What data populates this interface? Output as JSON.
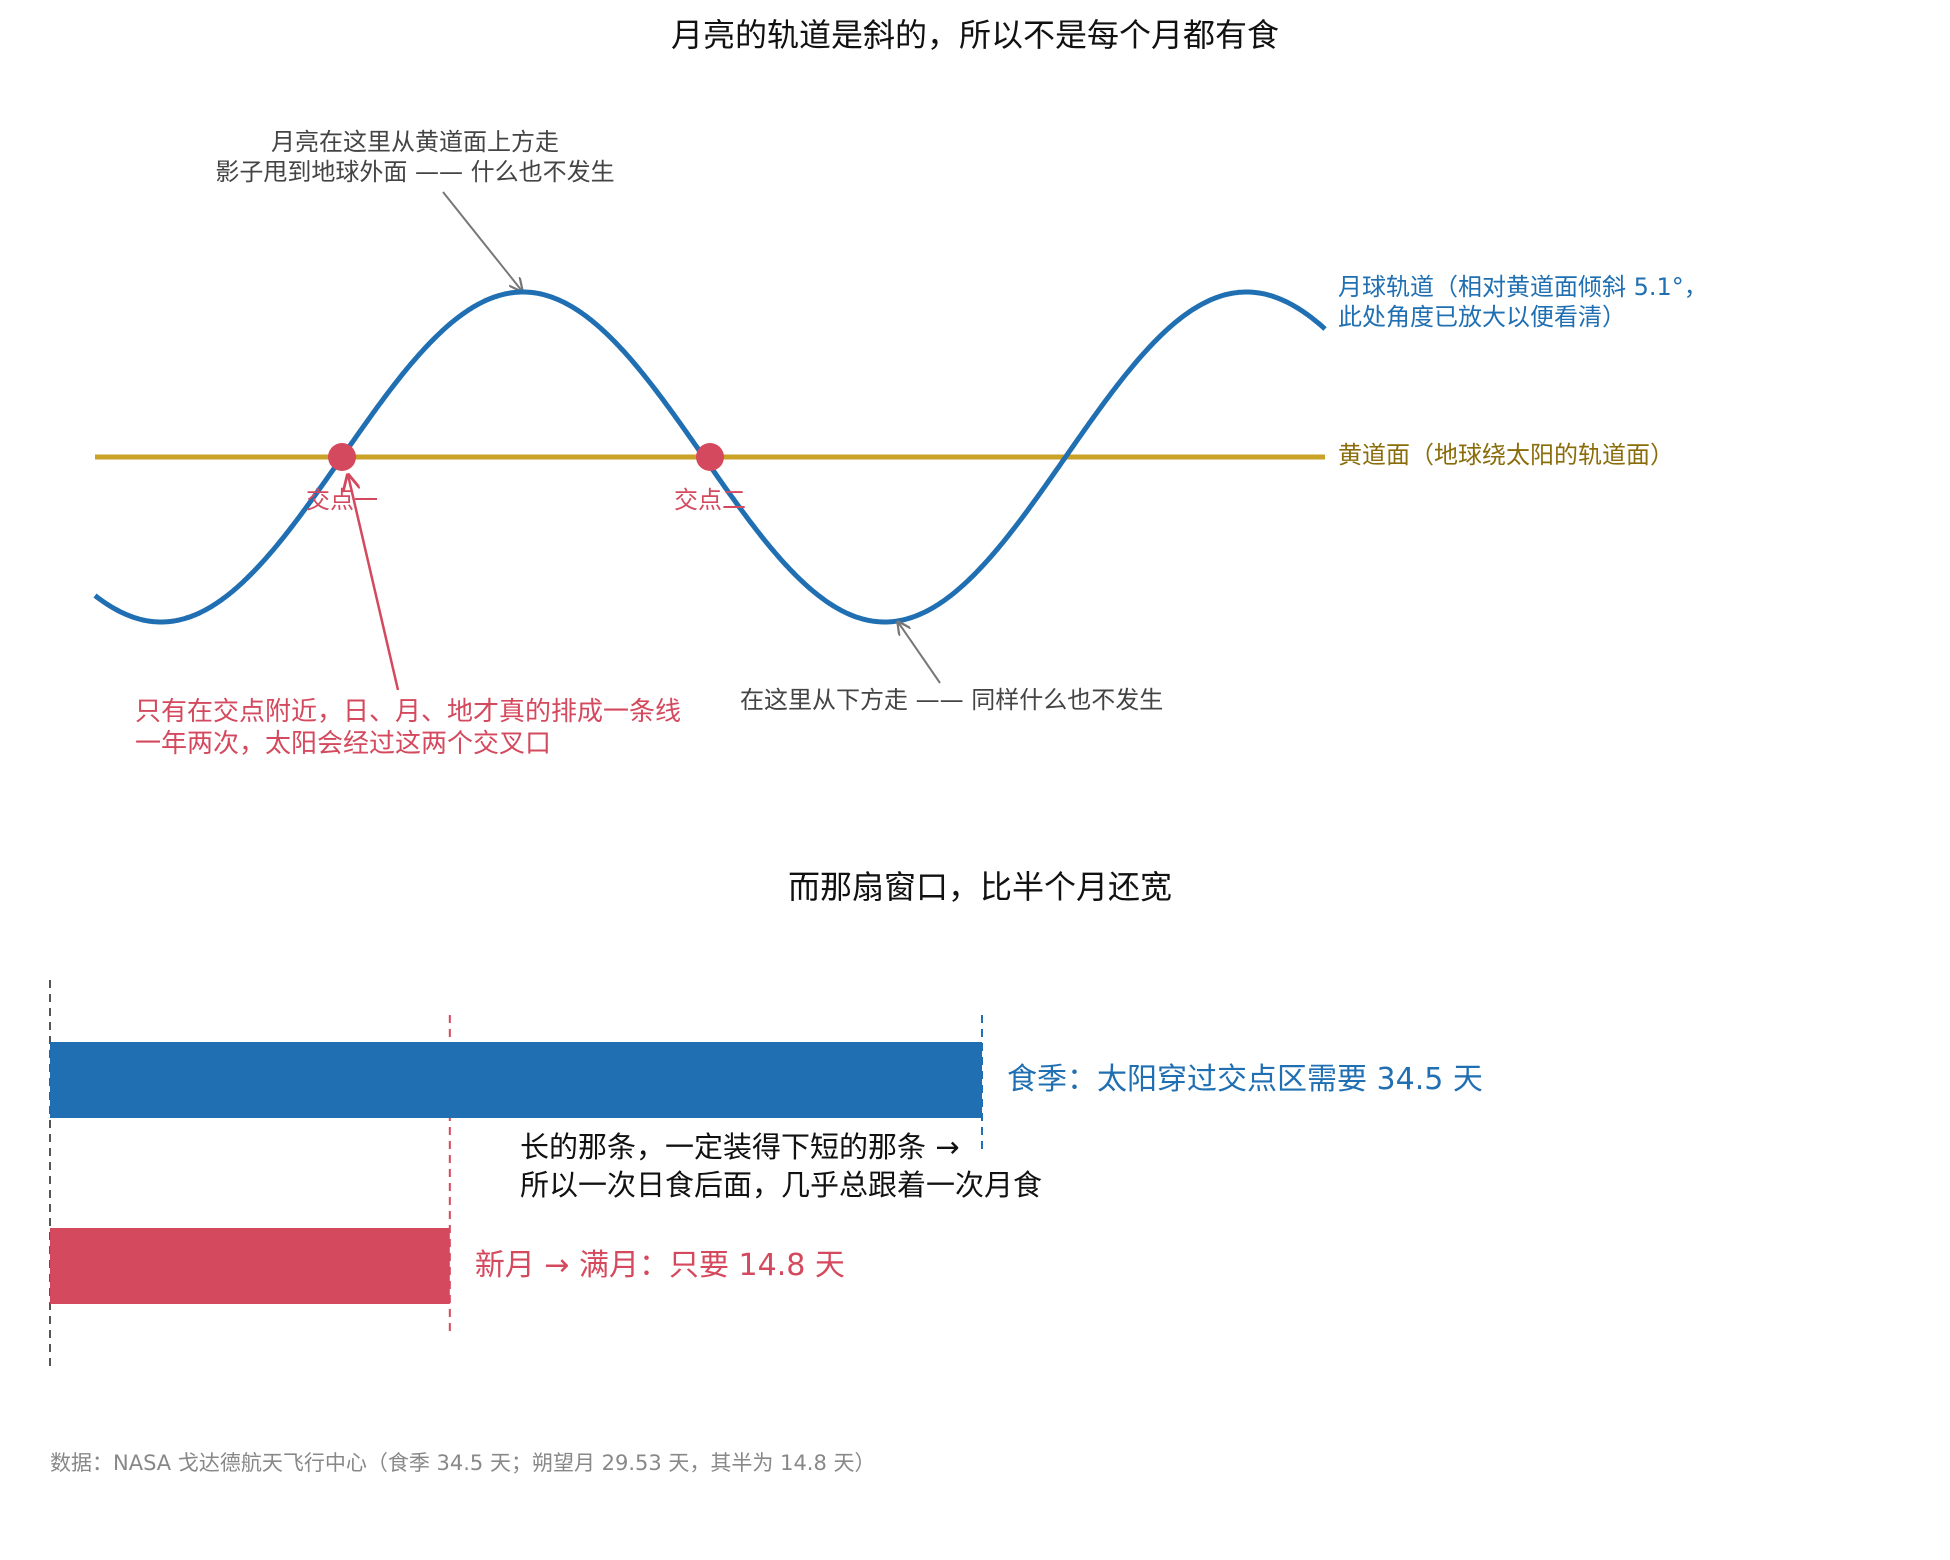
{
  "colors": {
    "orbit": "#1f6fb2",
    "ecliptic": "#c9a227",
    "ecliptic_text": "#8a6d0b",
    "node": "#d4495d",
    "annot": "#444444",
    "arrow": "#777777",
    "text": "#111111",
    "footnote": "#888888",
    "guide": "#555555"
  },
  "texts": {
    "title1": "月亮的轨道是斜的，所以不是每个月都有食",
    "annot_top_1": "月亮在这里从黄道面上方走",
    "annot_top_2": "影子甩到地球外面 —— 什么也不发生",
    "orbit_label_1": "月球轨道（相对黄道面倾斜 5.1°，",
    "orbit_label_2": "此处角度已放大以便看清）",
    "ecliptic_label": "黄道面（地球绕太阳的轨道面）",
    "node1": "交点一",
    "node2": "交点二",
    "annot_bottom": "在这里从下方走 —— 同样什么也不发生",
    "annot_node_1": "只有在交点附近，日、月、地才真的排成一条线",
    "annot_node_2": "一年两次，太阳会经过这两个交叉口",
    "title2": "而那扇窗口，比半个月还宽",
    "middle_note_1": "长的那条，一定装得下短的那条 →",
    "middle_note_2": "所以一次日食后面，几乎总跟着一次月食",
    "footnote": "数据：NASA 戈达德航天飞行中心（食季 34.5 天；朔望月 29.53 天，其半为 14.8 天）"
  },
  "chart_data": [
    {
      "type": "line",
      "title": "月亮的轨道是斜的，所以不是每个月都有食",
      "series": [
        {
          "name": "月球轨道（相对黄道面倾斜 5.1°，此处角度已放大以便看清）",
          "shape": "sine",
          "cycles": 1.7
        },
        {
          "name": "黄道面（地球绕太阳的轨道面）",
          "shape": "flat"
        }
      ],
      "nodes": [
        "交点一",
        "交点二"
      ],
      "grid": false
    },
    {
      "type": "bar",
      "orientation": "horizontal",
      "title": "而那扇窗口，比半个月还宽",
      "unit": "天",
      "bars": [
        {
          "label": "食季：太阳穿过交点区需要 34.5 天",
          "value": 34.5,
          "color": "#1f6fb2"
        },
        {
          "label": "新月 → 满月：只要 14.8 天",
          "value": 14.8,
          "color": "#d4495d"
        }
      ],
      "xlim": [
        0,
        34.5
      ],
      "grid": false
    }
  ]
}
